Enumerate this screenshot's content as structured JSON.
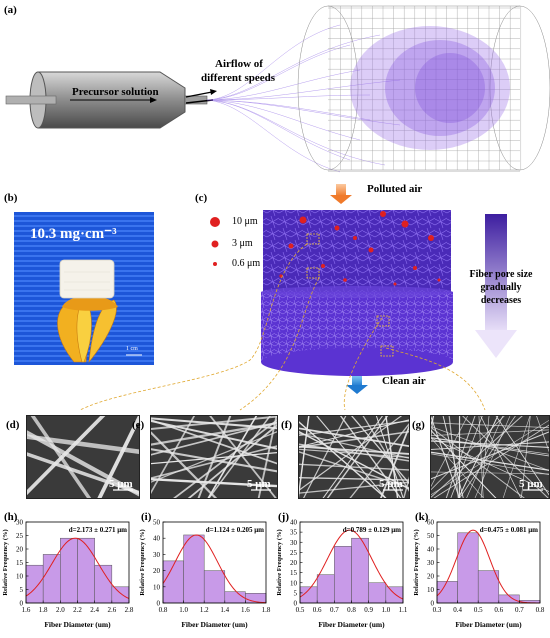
{
  "panels": {
    "a": {
      "label": "(a)",
      "precursor_label": "Precursor solution",
      "airflow_label_1": "Airflow of",
      "airflow_label_2": "different speeds"
    },
    "b": {
      "label": "(b)",
      "density_text": "10.3 mg·cm⁻³",
      "scale_text": "1 cm"
    },
    "c": {
      "label": "(c)",
      "polluted_air": "Polluted air",
      "clean_air": "Clean air",
      "particle_legend": [
        "10 μm",
        "3 μm",
        "0.6 μm"
      ],
      "gradient_text": [
        "Fiber pore size",
        "gradually",
        "decreases"
      ]
    },
    "sem": [
      {
        "label": "(d)",
        "scale": "5 μm"
      },
      {
        "label": "(e)",
        "scale": "5 μm"
      },
      {
        "label": "(f)",
        "scale": "5 μm"
      },
      {
        "label": "(g)",
        "scale": "5 μm"
      }
    ]
  },
  "colors": {
    "particle_red": "#e02020",
    "fiber_purple": "#5a2fc8",
    "arrow_orange": "#f39a5c",
    "arrow_blue": "#2a8fd8",
    "bar_fill": "#c89ae8",
    "curve_red": "#e02020"
  },
  "chart_data": [
    {
      "label": "(h)",
      "type": "bar",
      "annotation": "d=2.173 ± 0.271 μm",
      "xlabel": "Fiber Diameter (um)",
      "ylabel": "Relative Frequency (%)",
      "xlim": [
        1.6,
        2.8
      ],
      "ylim": [
        0,
        30
      ],
      "xticks": [
        "1.6",
        "1.8",
        "2.0",
        "2.2",
        "2.4",
        "2.6",
        "2.8"
      ],
      "yticks": [
        "0",
        "5",
        "10",
        "15",
        "20",
        "25",
        "30"
      ],
      "bin_centers": [
        1.7,
        1.9,
        2.1,
        2.3,
        2.5,
        2.7
      ],
      "values": [
        14,
        18,
        24,
        24,
        14,
        6
      ],
      "fit": {
        "type": "gaussian",
        "mean": 2.173,
        "sd": 0.271,
        "peak": 24
      }
    },
    {
      "label": "(i)",
      "type": "bar",
      "annotation": "d=1.124 ± 0.205 μm",
      "xlabel": "Fiber Diameter (um)",
      "ylabel": "Relative Frequency (%)",
      "xlim": [
        0.8,
        1.8
      ],
      "ylim": [
        0,
        50
      ],
      "xticks": [
        "0.8",
        "1.0",
        "1.2",
        "1.4",
        "1.6",
        "1.8"
      ],
      "yticks": [
        "0",
        "10",
        "20",
        "30",
        "40",
        "50"
      ],
      "bin_centers": [
        0.9,
        1.1,
        1.3,
        1.5,
        1.7
      ],
      "values": [
        26,
        42,
        20,
        7,
        6
      ],
      "fit": {
        "type": "gaussian",
        "mean": 1.124,
        "sd": 0.205,
        "peak": 42
      }
    },
    {
      "label": "(j)",
      "type": "bar",
      "annotation": "d=0.789 ± 0.129 μm",
      "xlabel": "Fiber Diameter (um)",
      "ylabel": "Relative Frequency (%)",
      "xlim": [
        0.5,
        1.1
      ],
      "ylim": [
        0,
        40
      ],
      "xticks": [
        "0.5",
        "0.6",
        "0.7",
        "0.8",
        "0.9",
        "1.0",
        "1.1"
      ],
      "yticks": [
        "0",
        "5",
        "10",
        "15",
        "20",
        "25",
        "30",
        "35",
        "40"
      ],
      "bin_centers": [
        0.55,
        0.65,
        0.75,
        0.85,
        0.95,
        1.05
      ],
      "values": [
        8,
        14,
        28,
        32,
        10,
        8
      ],
      "fit": {
        "type": "gaussian",
        "mean": 0.789,
        "sd": 0.129,
        "peak": 36
      }
    },
    {
      "label": "(k)",
      "type": "bar",
      "annotation": "d=0.475 ± 0.081 μm",
      "xlabel": "Fiber Diameter (um)",
      "ylabel": "Relative Frequency (%)",
      "xlim": [
        0.3,
        0.8
      ],
      "ylim": [
        0,
        60
      ],
      "xticks": [
        "0.3",
        "0.4",
        "0.5",
        "0.6",
        "0.7",
        "0.8"
      ],
      "yticks": [
        "0",
        "10",
        "20",
        "30",
        "40",
        "50",
        "60"
      ],
      "bin_centers": [
        0.35,
        0.45,
        0.55,
        0.65,
        0.75
      ],
      "values": [
        16,
        52,
        24,
        6,
        2
      ],
      "fit": {
        "type": "gaussian",
        "mean": 0.475,
        "sd": 0.081,
        "peak": 54
      }
    }
  ]
}
